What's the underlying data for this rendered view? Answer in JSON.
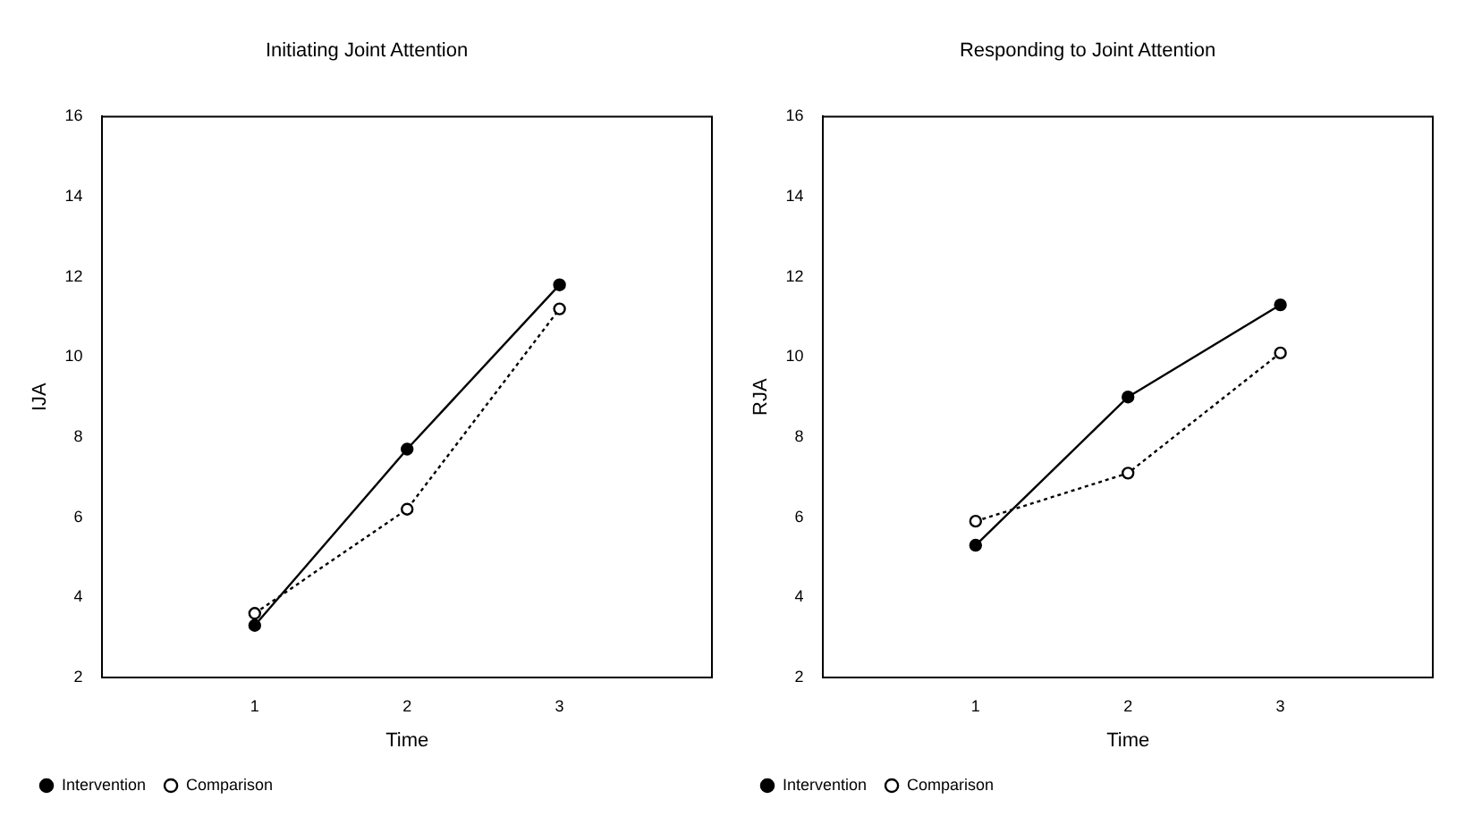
{
  "chart_data": [
    {
      "type": "line",
      "title": "Initiating Joint Attention",
      "xlabel": "Time",
      "ylabel": "IJA",
      "x": [
        1,
        2,
        3
      ],
      "xlim": [
        0,
        4
      ],
      "xticks": [
        1,
        2,
        3
      ],
      "ylim": [
        2,
        16
      ],
      "yticks": [
        2,
        4,
        6,
        8,
        10,
        12,
        14,
        16
      ],
      "grid": false,
      "legend": "bottom left",
      "marker": "circle",
      "series": [
        {
          "name": "Intervention",
          "color": "#000000",
          "line_style": "solid",
          "values": [
            3.3,
            7.7,
            11.8
          ]
        },
        {
          "name": "Comparison",
          "color": "#000000",
          "line_style": "dotted",
          "values": [
            3.6,
            6.2,
            11.2
          ]
        }
      ]
    },
    {
      "type": "line",
      "title": "Responding to Joint Attention",
      "xlabel": "Time",
      "ylabel": "RJA",
      "x": [
        1,
        2,
        3
      ],
      "xlim": [
        0,
        4
      ],
      "xticks": [
        1,
        2,
        3
      ],
      "ylim": [
        2,
        16
      ],
      "yticks": [
        2,
        4,
        6,
        8,
        10,
        12,
        14,
        16
      ],
      "grid": false,
      "legend": "bottom left",
      "marker": "circle",
      "series": [
        {
          "name": "Intervention",
          "color": "#000000",
          "line_style": "solid",
          "values": [
            5.3,
            9.0,
            11.3
          ]
        },
        {
          "name": "Comparison",
          "color": "#000000",
          "line_style": "dotted",
          "values": [
            5.9,
            7.1,
            10.1
          ]
        }
      ]
    }
  ]
}
